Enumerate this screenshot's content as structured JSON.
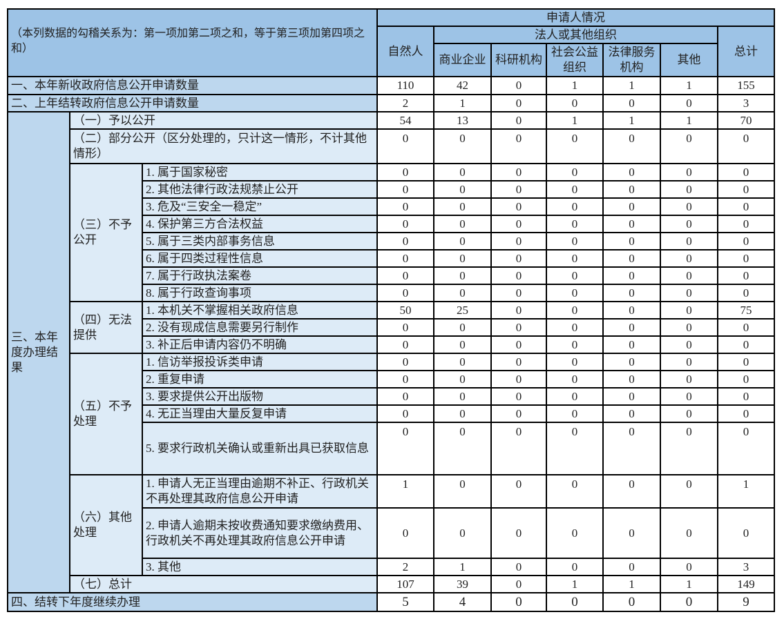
{
  "header": {
    "note": "（本列数据的勾稽关系为：第一项加第二项之和，等于第三项加第四项之和）",
    "applicant": "申请人情况",
    "natural_person": "自然人",
    "legal_org": "法人或其他组织",
    "total": "总计",
    "org_types": [
      "商业企业",
      "科研机构",
      "社会公益组织",
      "法律服务机构",
      "其他"
    ]
  },
  "section1": {
    "label": "一、本年新收政府信息公开申请数量",
    "values": [
      "110",
      "42",
      "0",
      "1",
      "1",
      "1",
      "155"
    ]
  },
  "section2": {
    "label": "二、上年结转政府信息公开申请数量",
    "values": [
      "2",
      "1",
      "0",
      "0",
      "0",
      "0",
      "3"
    ]
  },
  "section3": {
    "label": "三、本年度办理结果",
    "groups": [
      {
        "label": "（一）予以公开",
        "values": [
          "54",
          "13",
          "0",
          "1",
          "1",
          "1",
          "70"
        ]
      },
      {
        "label": "（二）部分公开（区分处理的，只计这一情形，不计其他情形）",
        "values": [
          "0",
          "0",
          "0",
          "0",
          "0",
          "0",
          "0"
        ]
      },
      {
        "label": "（三）不予公开",
        "items": [
          {
            "label": "1. 属于国家秘密",
            "values": [
              "0",
              "0",
              "0",
              "0",
              "0",
              "0",
              "0"
            ]
          },
          {
            "label": "2. 其他法律行政法规禁止公开",
            "values": [
              "0",
              "0",
              "0",
              "0",
              "0",
              "0",
              "0"
            ]
          },
          {
            "label": "3. 危及“三安全一稳定”",
            "values": [
              "0",
              "0",
              "0",
              "0",
              "0",
              "0",
              "0"
            ]
          },
          {
            "label": "4. 保护第三方合法权益",
            "values": [
              "0",
              "0",
              "0",
              "0",
              "0",
              "0",
              "0"
            ]
          },
          {
            "label": "5. 属于三类内部事务信息",
            "values": [
              "0",
              "0",
              "0",
              "0",
              "0",
              "0",
              "0"
            ]
          },
          {
            "label": "6. 属于四类过程性信息",
            "values": [
              "0",
              "0",
              "0",
              "0",
              "0",
              "0",
              "0"
            ]
          },
          {
            "label": "7. 属于行政执法案卷",
            "values": [
              "0",
              "0",
              "0",
              "0",
              "0",
              "0",
              "0"
            ]
          },
          {
            "label": "8. 属于行政查询事项",
            "values": [
              "0",
              "0",
              "0",
              "0",
              "0",
              "0",
              "0"
            ]
          }
        ]
      },
      {
        "label": "（四）无法提供",
        "items": [
          {
            "label": "1. 本机关不掌握相关政府信息",
            "values": [
              "50",
              "25",
              "0",
              "0",
              "0",
              "0",
              "75"
            ]
          },
          {
            "label": "2. 没有现成信息需要另行制作",
            "values": [
              "0",
              "0",
              "0",
              "0",
              "0",
              "0",
              "0"
            ]
          },
          {
            "label": "3. 补正后申请内容仍不明确",
            "values": [
              "0",
              "0",
              "0",
              "0",
              "0",
              "0",
              "0"
            ]
          }
        ]
      },
      {
        "label": "（五）不予处理",
        "items": [
          {
            "label": "1. 信访举报投诉类申请",
            "values": [
              "0",
              "0",
              "0",
              "0",
              "0",
              "0",
              "0"
            ]
          },
          {
            "label": "2. 重复申请",
            "values": [
              "0",
              "0",
              "0",
              "0",
              "0",
              "0",
              "0"
            ]
          },
          {
            "label": "3. 要求提供公开出版物",
            "values": [
              "0",
              "0",
              "0",
              "0",
              "0",
              "0",
              "0"
            ]
          },
          {
            "label": "4. 无正当理由大量反复申请",
            "values": [
              "0",
              "0",
              "0",
              "0",
              "0",
              "0",
              "0"
            ]
          },
          {
            "label": "5. 要求行政机关确认或重新出具已获取信息",
            "values": [
              "0",
              "0",
              "0",
              "0",
              "0",
              "0",
              "0"
            ]
          }
        ]
      },
      {
        "label": "（六）其他处理",
        "items": [
          {
            "label": "1. 申请人无正当理由逾期不补正、行政机关不再处理其政府信息公开申请",
            "values": [
              "1",
              "0",
              "0",
              "0",
              "0",
              "0",
              "1"
            ]
          },
          {
            "label": "2. 申请人逾期未按收费通知要求缴纳费用、行政机关不再处理其政府信息公开申请",
            "values": [
              "0",
              "0",
              "0",
              "0",
              "0",
              "0",
              "0"
            ]
          },
          {
            "label": "3. 其他",
            "values": [
              "2",
              "1",
              "0",
              "0",
              "0",
              "0",
              "3"
            ]
          }
        ]
      },
      {
        "label": "（七）总计",
        "values": [
          "107",
          "39",
          "0",
          "1",
          "1",
          "1",
          "149"
        ]
      }
    ]
  },
  "section4": {
    "label": "四、结转下年度继续办理",
    "values": [
      "5",
      "4",
      "0",
      "0",
      "0",
      "0",
      "9"
    ]
  },
  "colors": {
    "header": "#9dc3e6",
    "label": "#bdd7ee",
    "sublabel": "#ddebf7"
  }
}
